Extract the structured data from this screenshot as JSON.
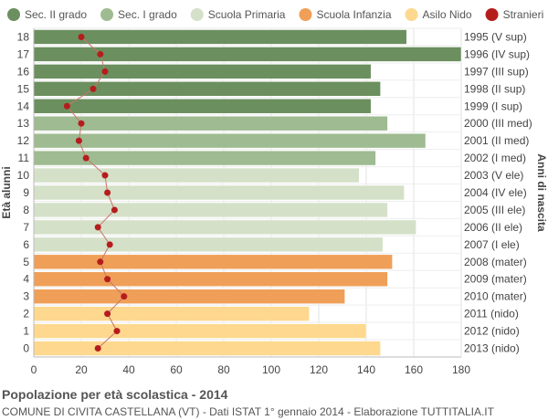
{
  "title": "Popolazione per età scolastica - 2014",
  "subtitle": "COMUNE DI CIVITA CASTELLANA (VT) - Dati ISTAT 1° gennaio 2014 - Elaborazione TUTTITALIA.IT",
  "colors": {
    "sec2": "#6b8f5e",
    "sec1": "#9fbb91",
    "primaria": "#d4e0c8",
    "infanzia": "#ef9f57",
    "nido": "#fdd88e",
    "stranieri": "#b51d1d",
    "line": "#c9756a"
  },
  "chart_data": {
    "type": "bar",
    "orientation": "horizontal",
    "ylabel_left": "Età alunni",
    "ylabel_right": "Anni di nascita",
    "xlim": [
      0,
      180
    ],
    "xticks": [
      0,
      20,
      40,
      60,
      80,
      100,
      120,
      140,
      160,
      180
    ],
    "grid": true,
    "legend_position": "top",
    "legend": [
      {
        "name": "Sec. II grado",
        "color_key": "sec2"
      },
      {
        "name": "Sec. I grado",
        "color_key": "sec1"
      },
      {
        "name": "Scuola Primaria",
        "color_key": "primaria"
      },
      {
        "name": "Scuola Infanzia",
        "color_key": "infanzia"
      },
      {
        "name": "Asilo Nido",
        "color_key": "nido"
      },
      {
        "name": "Stranieri",
        "color_key": "stranieri"
      }
    ],
    "rows": [
      {
        "age": "18",
        "birth": "1995 (V sup)",
        "total": 157,
        "stranieri": 20,
        "group": "sec2"
      },
      {
        "age": "17",
        "birth": "1996 (IV sup)",
        "total": 180,
        "stranieri": 28,
        "group": "sec2"
      },
      {
        "age": "16",
        "birth": "1997 (III sup)",
        "total": 142,
        "stranieri": 30,
        "group": "sec2"
      },
      {
        "age": "15",
        "birth": "1998 (II sup)",
        "total": 146,
        "stranieri": 25,
        "group": "sec2"
      },
      {
        "age": "14",
        "birth": "1999 (I sup)",
        "total": 142,
        "stranieri": 14,
        "group": "sec2"
      },
      {
        "age": "13",
        "birth": "2000 (III med)",
        "total": 149,
        "stranieri": 20,
        "group": "sec1"
      },
      {
        "age": "12",
        "birth": "2001 (II med)",
        "total": 165,
        "stranieri": 19,
        "group": "sec1"
      },
      {
        "age": "11",
        "birth": "2002 (I med)",
        "total": 144,
        "stranieri": 22,
        "group": "sec1"
      },
      {
        "age": "10",
        "birth": "2003 (V ele)",
        "total": 137,
        "stranieri": 30,
        "group": "primaria"
      },
      {
        "age": "9",
        "birth": "2004 (IV ele)",
        "total": 156,
        "stranieri": 31,
        "group": "primaria"
      },
      {
        "age": "8",
        "birth": "2005 (III ele)",
        "total": 149,
        "stranieri": 34,
        "group": "primaria"
      },
      {
        "age": "7",
        "birth": "2006 (II ele)",
        "total": 161,
        "stranieri": 27,
        "group": "primaria"
      },
      {
        "age": "6",
        "birth": "2007 (I ele)",
        "total": 147,
        "stranieri": 32,
        "group": "primaria"
      },
      {
        "age": "5",
        "birth": "2008 (mater)",
        "total": 151,
        "stranieri": 28,
        "group": "infanzia"
      },
      {
        "age": "4",
        "birth": "2009 (mater)",
        "total": 149,
        "stranieri": 31,
        "group": "infanzia"
      },
      {
        "age": "3",
        "birth": "2010 (mater)",
        "total": 131,
        "stranieri": 38,
        "group": "infanzia"
      },
      {
        "age": "2",
        "birth": "2011 (nido)",
        "total": 116,
        "stranieri": 31,
        "group": "nido"
      },
      {
        "age": "1",
        "birth": "2012 (nido)",
        "total": 140,
        "stranieri": 35,
        "group": "nido"
      },
      {
        "age": "0",
        "birth": "2013 (nido)",
        "total": 146,
        "stranieri": 27,
        "group": "nido"
      }
    ]
  }
}
